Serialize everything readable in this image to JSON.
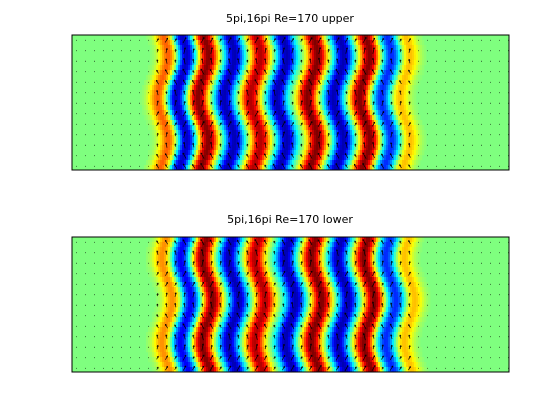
{
  "chart_data": [
    {
      "type": "heatmap",
      "title": "5pi,16pi Re=170 upper",
      "xlabel": "",
      "ylabel": "",
      "grid": false,
      "colormap": "jet",
      "overlay": "velocity-vector-quiver",
      "field": {
        "active_x_range_fraction": [
          0.2,
          0.78
        ],
        "bands": [
          {
            "x_fraction": 0.21,
            "value": 0.6
          },
          {
            "x_fraction": 0.25,
            "value": -0.9
          },
          {
            "x_fraction": 0.3,
            "value": 1.0
          },
          {
            "x_fraction": 0.36,
            "value": -0.9
          },
          {
            "x_fraction": 0.42,
            "value": 0.9
          },
          {
            "x_fraction": 0.48,
            "value": -0.9
          },
          {
            "x_fraction": 0.55,
            "value": 1.0
          },
          {
            "x_fraction": 0.61,
            "value": -0.9
          },
          {
            "x_fraction": 0.67,
            "value": 1.0
          },
          {
            "x_fraction": 0.72,
            "value": -0.7
          },
          {
            "x_fraction": 0.76,
            "value": 0.4
          }
        ],
        "wave_amplitude": 0.012,
        "wave_cycles": 1.6,
        "phase_offset": 0.0
      }
    },
    {
      "type": "heatmap",
      "title": "5pi,16pi Re=170 lower",
      "xlabel": "",
      "ylabel": "",
      "grid": false,
      "colormap": "jet",
      "overlay": "velocity-vector-quiver",
      "field": {
        "active_x_range_fraction": [
          0.2,
          0.78
        ],
        "bands": [
          {
            "x_fraction": 0.22,
            "value": 0.5
          },
          {
            "x_fraction": 0.26,
            "value": -0.8
          },
          {
            "x_fraction": 0.31,
            "value": 1.0
          },
          {
            "x_fraction": 0.37,
            "value": -0.9
          },
          {
            "x_fraction": 0.43,
            "value": 0.9
          },
          {
            "x_fraction": 0.5,
            "value": -0.9
          },
          {
            "x_fraction": 0.56,
            "value": 1.0
          },
          {
            "x_fraction": 0.62,
            "value": -0.9
          },
          {
            "x_fraction": 0.68,
            "value": 1.0
          },
          {
            "x_fraction": 0.73,
            "value": -0.7
          },
          {
            "x_fraction": 0.77,
            "value": 0.4
          }
        ],
        "wave_amplitude": 0.012,
        "wave_cycles": 1.6,
        "phase_offset": 3.14
      }
    }
  ]
}
